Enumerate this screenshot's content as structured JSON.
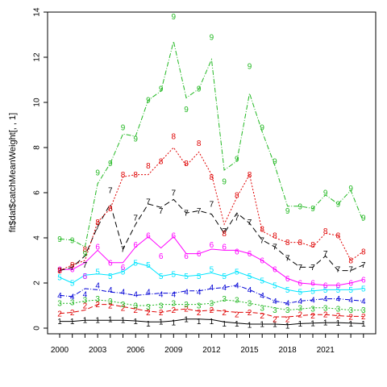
{
  "chart_data": {
    "type": "line",
    "ylabel": "fit$dat$catchMeanWeight[, , 1]",
    "xlabel": "",
    "title": "",
    "xlim": [
      2000,
      2024
    ],
    "ylim": [
      0,
      14
    ],
    "x_ticks": [
      2000,
      2003,
      2006,
      2009,
      2012,
      2015,
      2018,
      2021
    ],
    "y_ticks": [
      0,
      2,
      4,
      6,
      8,
      10,
      12,
      14
    ],
    "grid": false,
    "legend": "none",
    "observed_labels_shown": true,
    "x": [
      2000,
      2001,
      2002,
      2003,
      2004,
      2005,
      2006,
      2007,
      2008,
      2009,
      2010,
      2011,
      2012,
      2013,
      2014,
      2015,
      2016,
      2017,
      2018,
      2019,
      2020,
      2021,
      2022,
      2023,
      2024
    ],
    "series": [
      {
        "label": "1",
        "color": "#000000",
        "dash": "none",
        "fitted": [
          0.3,
          0.3,
          0.35,
          0.35,
          0.35,
          0.35,
          0.32,
          0.28,
          0.28,
          0.32,
          0.4,
          0.4,
          0.38,
          0.28,
          0.22,
          0.18,
          0.18,
          0.18,
          0.15,
          0.2,
          0.22,
          0.24,
          0.24,
          0.22,
          0.2
        ],
        "observed": [
          0.3,
          0.3,
          0.35,
          0.35,
          0.4,
          0.35,
          0.3,
          0.2,
          0.28,
          0.25,
          0.4,
          0.3,
          0.3,
          0.2,
          0.2,
          0.15,
          0.18,
          0.18,
          0.1,
          0.2,
          0.22,
          0.25,
          0.24,
          0.2,
          0.2
        ]
      },
      {
        "label": "2",
        "color": "#df0000",
        "dash": "6,3",
        "fitted": [
          0.65,
          0.7,
          0.8,
          1.05,
          1.05,
          0.95,
          0.85,
          0.75,
          0.7,
          0.8,
          0.85,
          0.75,
          0.8,
          0.75,
          0.7,
          0.7,
          0.65,
          0.5,
          0.5,
          0.55,
          0.6,
          0.6,
          0.55,
          0.52,
          0.52
        ],
        "observed": [
          0.65,
          0.7,
          1.0,
          1.05,
          1.0,
          0.9,
          0.8,
          0.7,
          0.7,
          0.8,
          0.85,
          0.7,
          0.8,
          0.7,
          0.6,
          0.7,
          0.55,
          0.4,
          0.4,
          0.6,
          0.55,
          0.6,
          0.55,
          0.5,
          0.52
        ]
      },
      {
        "label": "3",
        "color": "#22b822",
        "dash": "2,2",
        "fitted": [
          1.1,
          1.1,
          1.2,
          1.25,
          1.2,
          1.1,
          1.0,
          1.0,
          1.05,
          1.05,
          1.05,
          1.05,
          1.1,
          1.25,
          1.2,
          1.1,
          1.0,
          0.9,
          0.8,
          0.85,
          0.9,
          0.9,
          0.85,
          0.8,
          0.8
        ],
        "observed": [
          1.1,
          1.15,
          1.25,
          1.3,
          1.2,
          1.05,
          1.0,
          0.95,
          1.0,
          1.1,
          1.05,
          1.0,
          1.1,
          1.3,
          1.25,
          1.1,
          0.9,
          0.8,
          0.8,
          0.9,
          0.85,
          0.9,
          0.85,
          0.8,
          0.8
        ]
      },
      {
        "label": "4",
        "color": "#0000d6",
        "dash": "6,2,1,2",
        "fitted": [
          1.45,
          1.4,
          1.75,
          1.7,
          1.6,
          1.55,
          1.45,
          1.5,
          1.55,
          1.55,
          1.65,
          1.65,
          1.75,
          1.8,
          1.9,
          1.7,
          1.45,
          1.2,
          1.1,
          1.2,
          1.25,
          1.3,
          1.3,
          1.25,
          1.2
        ],
        "observed": [
          1.45,
          1.4,
          1.5,
          1.9,
          1.7,
          1.6,
          1.5,
          1.6,
          1.5,
          1.5,
          1.6,
          1.6,
          1.8,
          1.8,
          1.9,
          1.7,
          1.45,
          1.2,
          1.1,
          1.2,
          1.25,
          1.3,
          1.3,
          1.25,
          1.2
        ]
      },
      {
        "label": "5",
        "color": "#00e5ff",
        "dash": "none",
        "fitted": [
          2.25,
          2.0,
          2.35,
          2.4,
          2.35,
          2.5,
          2.9,
          2.75,
          2.3,
          2.4,
          2.3,
          2.35,
          2.45,
          2.3,
          2.5,
          2.3,
          2.1,
          1.9,
          1.7,
          1.6,
          1.65,
          1.7,
          1.7,
          1.7,
          1.75
        ],
        "observed": [
          2.25,
          2.0,
          2.3,
          2.5,
          2.3,
          2.5,
          2.9,
          2.8,
          2.3,
          2.4,
          2.3,
          2.3,
          2.6,
          2.3,
          2.5,
          2.3,
          2.1,
          1.9,
          1.7,
          1.6,
          1.65,
          1.7,
          1.7,
          1.7,
          1.75
        ]
      },
      {
        "label": "6",
        "color": "#ff00ff",
        "dash": "none",
        "fitted": [
          2.6,
          2.6,
          2.9,
          3.45,
          2.9,
          2.9,
          3.6,
          4.05,
          3.55,
          4.05,
          3.3,
          3.3,
          3.5,
          3.45,
          3.45,
          3.3,
          3.0,
          2.6,
          2.2,
          2.0,
          1.95,
          1.9,
          1.9,
          2.0,
          2.15
        ],
        "observed": [
          2.6,
          2.6,
          2.3,
          3.6,
          2.9,
          2.7,
          3.7,
          4.1,
          3.2,
          4.1,
          3.2,
          3.3,
          3.7,
          3.6,
          3.4,
          3.3,
          3.0,
          2.6,
          2.2,
          2.0,
          2.0,
          1.9,
          1.9,
          2.0,
          2.15
        ]
      },
      {
        "label": "7",
        "color": "#000000",
        "dash": "7,4",
        "fitted": [
          2.55,
          2.7,
          3.2,
          4.5,
          5.5,
          3.5,
          4.6,
          5.5,
          5.35,
          5.7,
          5.1,
          5.2,
          5.05,
          4.2,
          5.1,
          4.65,
          3.9,
          3.6,
          3.1,
          2.7,
          2.7,
          3.2,
          2.55,
          2.55,
          2.8
        ],
        "observed": [
          2.55,
          2.7,
          2.8,
          4.5,
          6.1,
          3.5,
          4.9,
          5.6,
          5.2,
          6.0,
          5.1,
          5.2,
          5.5,
          4.3,
          4.9,
          4.7,
          3.9,
          3.6,
          3.1,
          2.7,
          2.7,
          3.3,
          2.6,
          2.6,
          2.8
        ]
      },
      {
        "label": "8",
        "color": "#df0000",
        "dash": "2,2",
        "fitted": [
          2.55,
          2.8,
          3.0,
          4.7,
          5.3,
          6.7,
          6.8,
          6.8,
          7.4,
          8.0,
          7.2,
          7.8,
          6.8,
          4.6,
          5.8,
          6.8,
          4.3,
          4.0,
          3.8,
          3.8,
          3.6,
          4.2,
          4.1,
          3.0,
          3.4
        ],
        "observed": [
          2.55,
          2.8,
          3.5,
          4.7,
          5.3,
          6.8,
          6.8,
          7.2,
          7.4,
          8.5,
          7.3,
          8.2,
          6.7,
          4.2,
          5.9,
          6.8,
          4.4,
          4.1,
          3.8,
          3.8,
          3.7,
          4.3,
          4.1,
          3.0,
          3.4
        ]
      },
      {
        "label": "9",
        "color": "#22b822",
        "dash": "6,2,1,2",
        "fitted": [
          3.95,
          3.9,
          3.6,
          6.4,
          7.3,
          8.6,
          8.5,
          10.1,
          10.5,
          12.7,
          10.2,
          10.6,
          11.9,
          7.0,
          7.4,
          10.4,
          8.7,
          7.2,
          5.4,
          5.4,
          5.3,
          5.9,
          5.5,
          6.1,
          4.7
        ],
        "observed": [
          3.95,
          3.9,
          3.3,
          6.9,
          7.3,
          8.9,
          8.4,
          10.1,
          10.6,
          13.8,
          9.7,
          10.6,
          12.9,
          6.5,
          7.5,
          11.6,
          8.9,
          7.4,
          5.2,
          5.4,
          5.3,
          6.0,
          5.5,
          6.2,
          4.9
        ]
      }
    ]
  }
}
